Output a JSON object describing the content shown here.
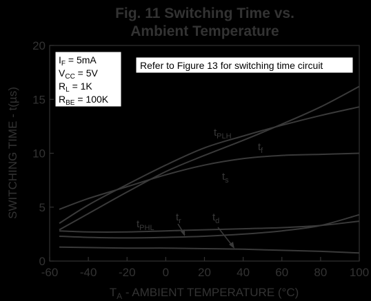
{
  "chart_data": {
    "type": "line",
    "title_line1": "Fig. 11  Switching Time vs.",
    "title_line2": "Ambient Temperature",
    "xlabel": "T",
    "xlabel_sub": "A",
    "xlabel_rest": " - AMBIENT TEMPERATURE (°C)",
    "ylabel": "SWITCHING TIME - t(µs)",
    "xlim": [
      -60,
      100
    ],
    "ylim": [
      0,
      20
    ],
    "xticks": [
      -60,
      -40,
      -20,
      0,
      20,
      40,
      60,
      80,
      100
    ],
    "yticks": [
      0,
      5,
      10,
      15,
      20
    ],
    "grid": false,
    "conditions": [
      {
        "main": "I",
        "sub": "F",
        "rest": " = 5mA"
      },
      {
        "main": "V",
        "sub": "CC",
        "rest": " = 5V"
      },
      {
        "main": "R",
        "sub": "L",
        "rest": " = 1K"
      },
      {
        "main": "R",
        "sub": "BE",
        "rest": " = 100K"
      }
    ],
    "note": "Refer to Figure 13 for switching time circuit",
    "series": [
      {
        "name": "tPLH",
        "label_main": "t",
        "label_sub": "PLH",
        "x": [
          -55,
          -40,
          -20,
          0,
          20,
          40,
          60,
          80,
          100
        ],
        "y": [
          3.5,
          5.2,
          7.1,
          8.9,
          10.5,
          11.6,
          12.6,
          13.5,
          14.3
        ]
      },
      {
        "name": "tf",
        "label_main": "t",
        "label_sub": "f",
        "x": [
          -55,
          -40,
          -20,
          0,
          20,
          40,
          60,
          80,
          100
        ],
        "y": [
          2.9,
          4.4,
          6.4,
          8.3,
          9.8,
          11.2,
          12.7,
          14.3,
          16.2
        ]
      },
      {
        "name": "ts",
        "label_main": "t",
        "label_sub": "s",
        "x": [
          -55,
          -40,
          -20,
          0,
          20,
          40,
          60,
          80,
          100
        ],
        "y": [
          4.8,
          5.8,
          6.9,
          8.0,
          8.9,
          9.5,
          9.8,
          9.9,
          10.0
        ]
      },
      {
        "name": "tPHL",
        "label_main": "t",
        "label_sub": "PHL",
        "x": [
          -55,
          -40,
          -20,
          0,
          20,
          40,
          60,
          80,
          100
        ],
        "y": [
          2.8,
          2.7,
          2.7,
          2.8,
          2.9,
          3.0,
          3.1,
          3.3,
          3.7
        ]
      },
      {
        "name": "tr",
        "label_main": "t",
        "label_sub": "r",
        "x": [
          -55,
          -40,
          -20,
          0,
          20,
          40,
          60,
          80,
          100
        ],
        "y": [
          2.3,
          2.2,
          2.15,
          2.2,
          2.3,
          2.5,
          2.8,
          3.3,
          4.3
        ]
      },
      {
        "name": "td",
        "label_main": "t",
        "label_sub": "d",
        "x": [
          -55,
          -40,
          -20,
          0,
          20,
          40,
          60,
          80,
          100
        ],
        "y": [
          1.3,
          1.25,
          1.2,
          1.2,
          1.15,
          1.1,
          1.0,
          0.9,
          0.75
        ]
      }
    ]
  }
}
